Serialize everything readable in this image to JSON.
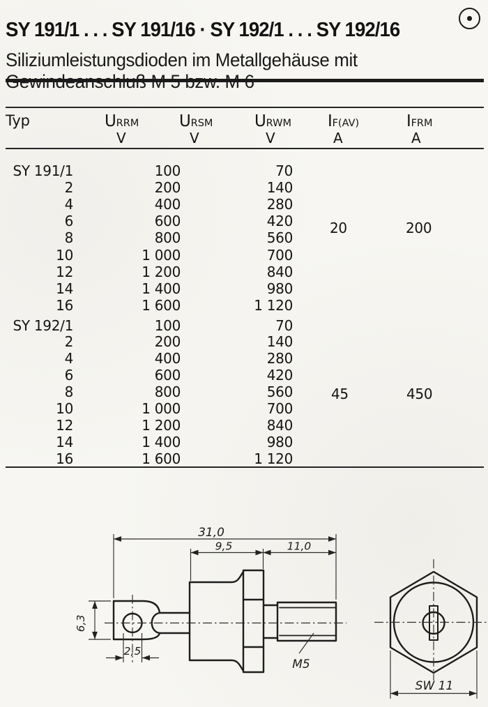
{
  "page": {
    "title": "SY 191/1 . . . SY 191/16 · SY 192/1 . . . SY 192/16",
    "subtitle_line1": "Siliziumleistungsdioden im Metallgehäuse mit",
    "subtitle_line2": "Gewindeanschluß M 5 bzw. M 6",
    "icons": {
      "header_mark": "circle-dot"
    }
  },
  "table": {
    "col_typ": "Typ",
    "columns": [
      {
        "symbol": "U",
        "sub": "RRM",
        "unit": "V"
      },
      {
        "symbol": "U",
        "sub": "RSM",
        "unit": "V"
      },
      {
        "symbol": "U",
        "sub": "RWM",
        "unit": "V"
      },
      {
        "symbol": "I",
        "sub": "F(AV)",
        "unit": "A"
      },
      {
        "symbol": "I",
        "sub": "FRM",
        "unit": "A"
      }
    ],
    "blocks": [
      {
        "if_av": "20",
        "ifrm": "200",
        "rows": [
          {
            "typ": "SY 191/1",
            "urrm": "100",
            "urwm": "70"
          },
          {
            "typ": "2",
            "urrm": "200",
            "urwm": "140"
          },
          {
            "typ": "4",
            "urrm": "400",
            "urwm": "280"
          },
          {
            "typ": "6",
            "urrm": "600",
            "urwm": "420"
          },
          {
            "typ": "8",
            "urrm": "800",
            "urwm": "560"
          },
          {
            "typ": "10",
            "urrm": "1 000",
            "urwm": "700"
          },
          {
            "typ": "12",
            "urrm": "1 200",
            "urwm": "840"
          },
          {
            "typ": "14",
            "urrm": "1 400",
            "urwm": "980"
          },
          {
            "typ": "16",
            "urrm": "1 600",
            "urwm": "1 120"
          }
        ]
      },
      {
        "if_av": "45",
        "ifrm": "450",
        "rows": [
          {
            "typ": "SY 192/1",
            "urrm": "100",
            "urwm": "70"
          },
          {
            "typ": "2",
            "urrm": "200",
            "urwm": "140"
          },
          {
            "typ": "4",
            "urrm": "400",
            "urwm": "280"
          },
          {
            "typ": "6",
            "urrm": "600",
            "urwm": "420"
          },
          {
            "typ": "8",
            "urrm": "800",
            "urwm": "560"
          },
          {
            "typ": "10",
            "urrm": "1 000",
            "urwm": "700"
          },
          {
            "typ": "12",
            "urrm": "1 200",
            "urwm": "840"
          },
          {
            "typ": "14",
            "urrm": "1 400",
            "urwm": "980"
          },
          {
            "typ": "16",
            "urrm": "1 600",
            "urwm": "1 120"
          }
        ]
      }
    ]
  },
  "drawing": {
    "side_view": {
      "dim_overall": "31,0",
      "dim_body": "9,5",
      "dim_thread": "11,0",
      "dim_tab_height": "6,3",
      "dim_hole": "2,5",
      "thread_label": "M5"
    },
    "end_view": {
      "dim_width": "SW 11"
    }
  }
}
